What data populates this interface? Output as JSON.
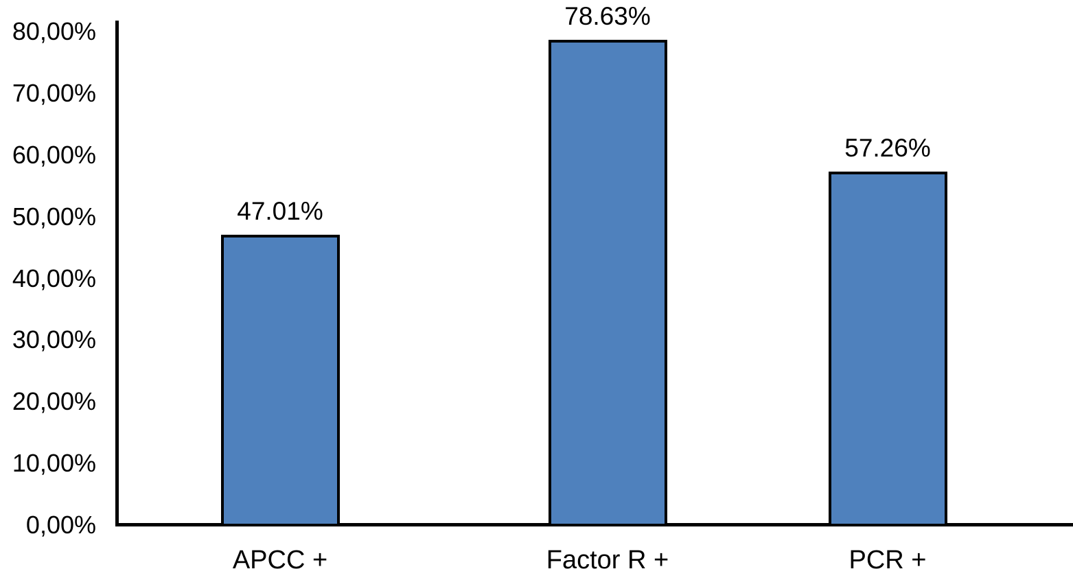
{
  "chart_data": {
    "type": "bar",
    "title": "",
    "xlabel": "",
    "ylabel": "",
    "categories": [
      "APCC +",
      "Factor R +",
      "PCR +"
    ],
    "values": [
      47.01,
      78.63,
      57.26
    ],
    "data_labels": [
      "47.01%",
      "78.63%",
      "57.26%"
    ],
    "y_tick_labels": [
      "0,00%",
      "10,00%",
      "20,00%",
      "30,00%",
      "40,00%",
      "50,00%",
      "60,00%",
      "70,00%",
      "80,00%"
    ],
    "y_tick_values": [
      0,
      10,
      20,
      30,
      40,
      50,
      60,
      70,
      80
    ],
    "ylim": [
      0,
      80
    ],
    "grid": false,
    "legend": false,
    "bar_color": "#4F81BD",
    "bar_border_color": "#000000",
    "axis_color": "#000000",
    "text_color": "#000000",
    "background_color": "#FFFFFF"
  }
}
